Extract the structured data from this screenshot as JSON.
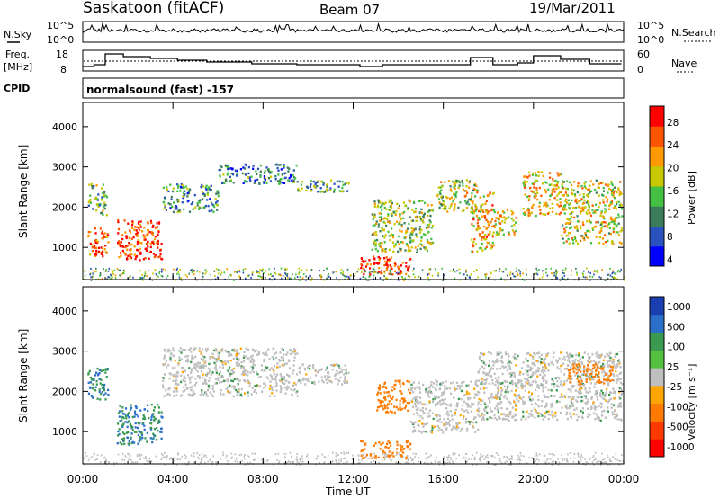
{
  "header": {
    "station": "Saskatoon (fitACF)",
    "beam": "Beam 07",
    "date": "19/Mar/2011"
  },
  "strip_panels": {
    "nsky": {
      "label": "N.Sky",
      "left_ticks": [
        "10^5",
        "10^0"
      ],
      "right_ticks": [
        "10^5",
        "10^0"
      ],
      "right_label": "N.Search"
    },
    "freq": {
      "label_line1": "Freq.",
      "label_line2": "[MHz]",
      "left_ticks": [
        "18",
        "8"
      ],
      "right_ticks": [
        "60",
        "0"
      ],
      "right_label": "Nave"
    },
    "cpid": {
      "label": "CPID",
      "text": "normalsound (fast) -157"
    }
  },
  "power_panel": {
    "ylabel": "Slant Range [km]",
    "colorbar_label": "Power [dB]",
    "colorbar_ticks": [
      "28",
      "24",
      "20",
      "16",
      "12",
      "8",
      "4"
    ],
    "colors": [
      "#0000ff",
      "#2a52be",
      "#3a7d5a",
      "#44c144",
      "#c8c800",
      "#ff9900",
      "#ff5500",
      "#ff0000"
    ]
  },
  "velocity_panel": {
    "ylabel": "Slant Range [km]",
    "colorbar_label": "Velocity [m s⁻¹]",
    "colorbar_ticks": [
      "1000",
      "500",
      "100",
      "25",
      "-25",
      "-100",
      "-500",
      "-1000"
    ],
    "colors": [
      "#1a3fb0",
      "#2a70c8",
      "#3a9a50",
      "#55c040",
      "#bfbfbf",
      "#ffa500",
      "#ff7a00",
      "#ff3a00",
      "#ff0000"
    ]
  },
  "xaxis": {
    "label": "Time UT"
  },
  "chart_data": [
    {
      "type": "heatmap",
      "title": "Power",
      "xlabel": "Time UT",
      "ylabel": "Slant Range [km]",
      "x_ticks": [
        "00:00",
        "04:00",
        "08:00",
        "12:00",
        "16:00",
        "20:00",
        "00:00"
      ],
      "y_ticks": [
        1000,
        2000,
        3000,
        4000
      ],
      "xlim": [
        0,
        24
      ],
      "ylim": [
        200,
        4600
      ],
      "colorbar": {
        "label": "Power [dB]",
        "range": [
          0,
          30
        ],
        "ticks": [
          4,
          8,
          12,
          16,
          20,
          24,
          28
        ]
      },
      "regions": [
        {
          "t0": 0.2,
          "t1": 1.1,
          "r0": 800,
          "r1": 1500,
          "value": 24
        },
        {
          "t0": 0.2,
          "t1": 1.1,
          "r0": 1800,
          "r1": 2600,
          "value": 12
        },
        {
          "t0": 1.5,
          "t1": 3.5,
          "r0": 700,
          "r1": 1700,
          "value": 26
        },
        {
          "t0": 3.5,
          "t1": 6.0,
          "r0": 1900,
          "r1": 2600,
          "value": 10
        },
        {
          "t0": 6.0,
          "t1": 9.5,
          "r0": 2600,
          "r1": 3100,
          "value": 9
        },
        {
          "t0": 9.5,
          "t1": 11.8,
          "r0": 2400,
          "r1": 2700,
          "value": 11
        },
        {
          "t0": 12.3,
          "t1": 14.5,
          "r0": 350,
          "r1": 800,
          "value": 27
        },
        {
          "t0": 12.8,
          "t1": 15.5,
          "r0": 900,
          "r1": 2200,
          "value": 15
        },
        {
          "t0": 15.7,
          "t1": 17.5,
          "r0": 1900,
          "r1": 2700,
          "value": 16
        },
        {
          "t0": 17.2,
          "t1": 18.2,
          "r0": 900,
          "r1": 2400,
          "value": 20
        },
        {
          "t0": 18.2,
          "t1": 19.2,
          "r0": 1300,
          "r1": 2000,
          "value": 18
        },
        {
          "t0": 19.5,
          "t1": 21.2,
          "r0": 1800,
          "r1": 2900,
          "value": 19
        },
        {
          "t0": 21.2,
          "t1": 23.9,
          "r0": 1100,
          "r1": 2700,
          "value": 17
        }
      ]
    },
    {
      "type": "heatmap",
      "title": "Velocity",
      "xlabel": "Time UT",
      "ylabel": "Slant Range [km]",
      "x_ticks": [
        "00:00",
        "04:00",
        "08:00",
        "12:00",
        "16:00",
        "20:00",
        "00:00"
      ],
      "y_ticks": [
        1000,
        2000,
        3000,
        4000
      ],
      "xlim": [
        0,
        24
      ],
      "ylim": [
        200,
        4600
      ],
      "colorbar": {
        "label": "Velocity [m s⁻¹]",
        "ticks": [
          1000,
          500,
          100,
          25,
          -25,
          -100,
          -500,
          -1000
        ]
      },
      "regions": [
        {
          "t0": 0.2,
          "t1": 1.1,
          "r0": 1800,
          "r1": 2600,
          "value": 100
        },
        {
          "t0": 1.5,
          "t1": 3.5,
          "r0": 700,
          "r1": 1700,
          "value": 100
        },
        {
          "t0": 3.5,
          "t1": 9.5,
          "r0": 1900,
          "r1": 3100,
          "value": 0
        },
        {
          "t0": 9.5,
          "t1": 11.8,
          "r0": 2200,
          "r1": 2700,
          "value": 0
        },
        {
          "t0": 12.3,
          "t1": 14.5,
          "r0": 350,
          "r1": 800,
          "value": -300
        },
        {
          "t0": 13.0,
          "t1": 14.5,
          "r0": 1500,
          "r1": 2300,
          "value": -300
        },
        {
          "t0": 14.5,
          "t1": 17.5,
          "r0": 1000,
          "r1": 2300,
          "value": 0
        },
        {
          "t0": 17.5,
          "t1": 23.9,
          "r0": 1300,
          "r1": 3000,
          "value": 0
        },
        {
          "t0": 21.5,
          "t1": 23.5,
          "r0": 2200,
          "r1": 2700,
          "value": -300
        }
      ]
    }
  ]
}
